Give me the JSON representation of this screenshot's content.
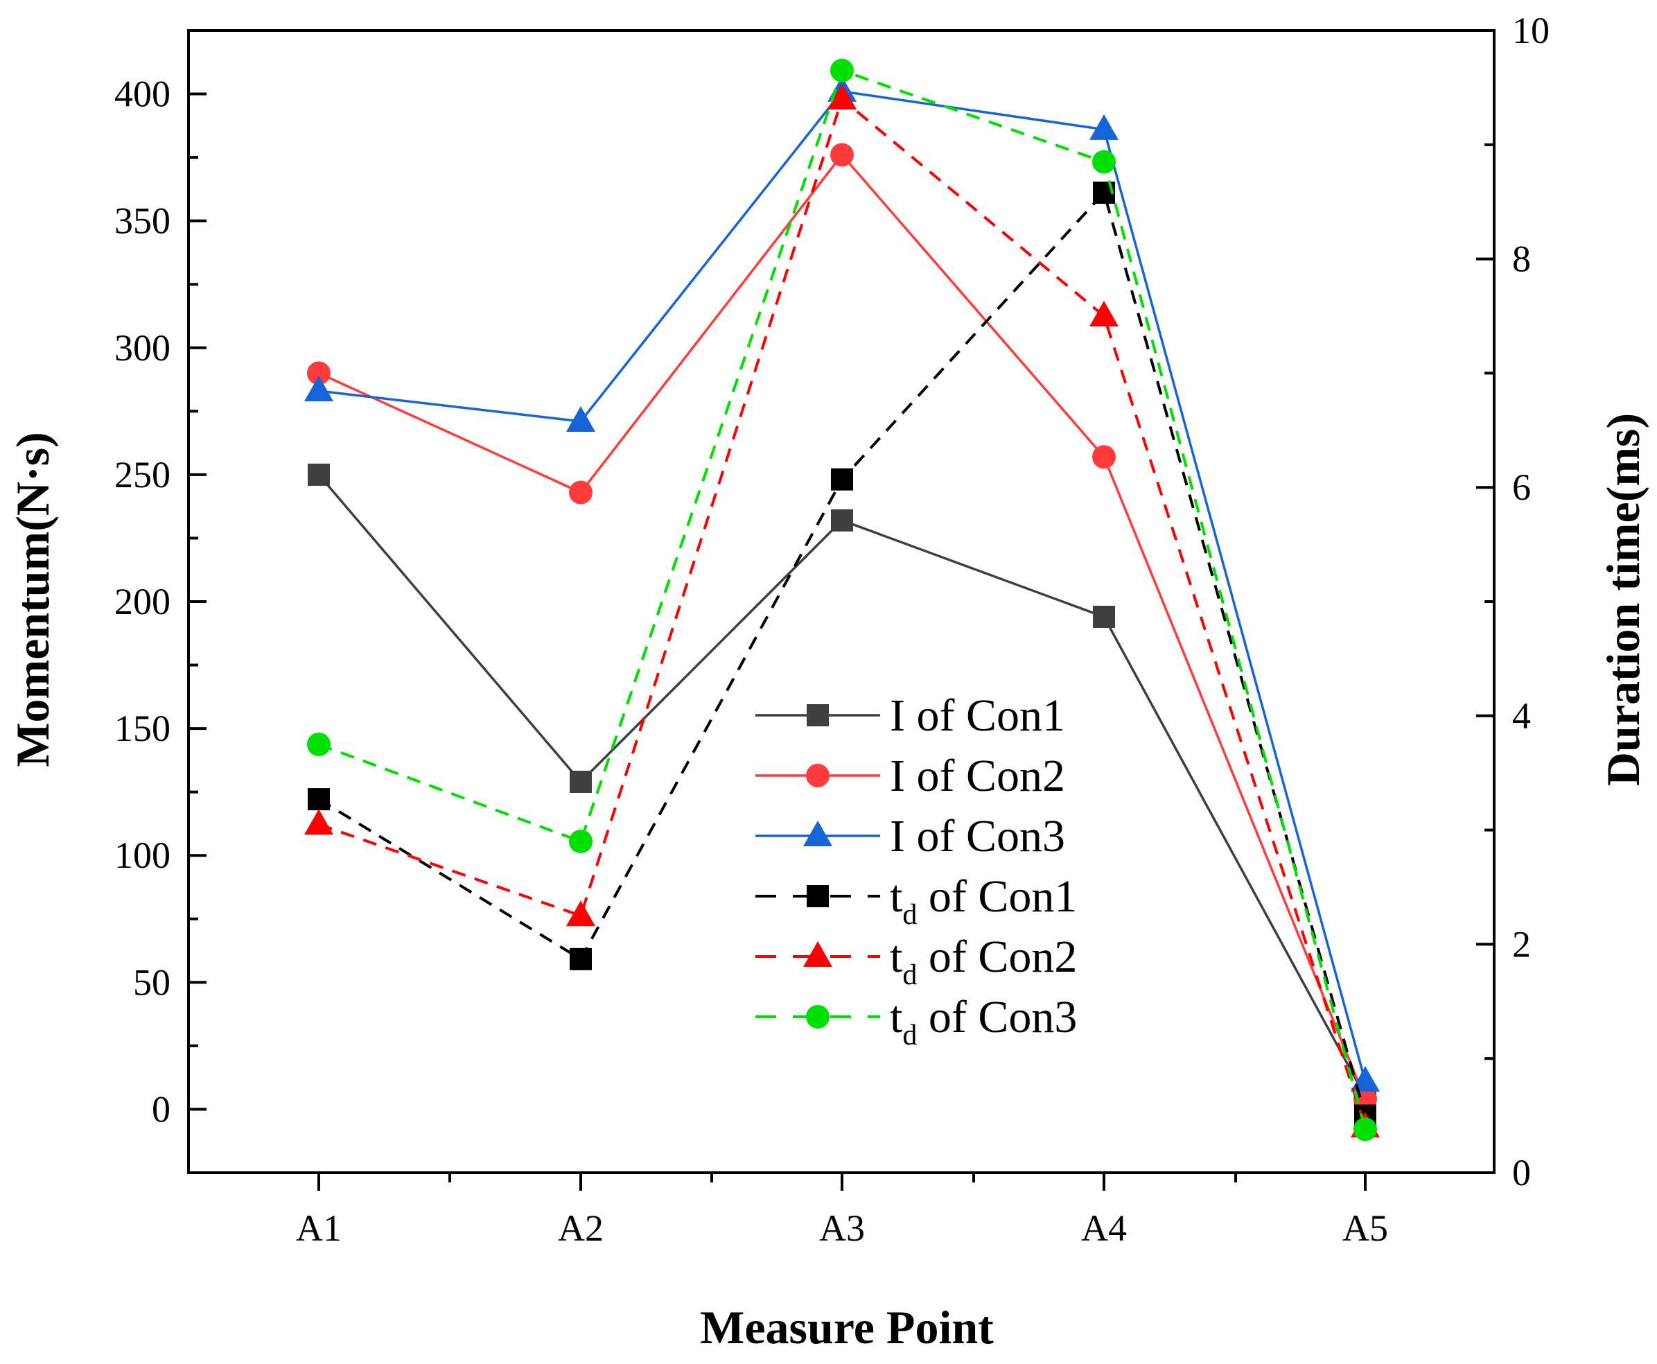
{
  "chart_data": {
    "type": "line",
    "categories": [
      "A1",
      "A2",
      "A3",
      "A4",
      "A5"
    ],
    "xlabel": "Measure Point",
    "ylabel_left": "Momentum(N·s)",
    "ylabel_right": "Duration time(ms)",
    "ylim_left": [
      -25,
      425
    ],
    "ylim_right": [
      0,
      10
    ],
    "yticks_left": [
      0,
      50,
      100,
      150,
      200,
      250,
      300,
      350,
      400
    ],
    "yticks_right": [
      0,
      2,
      4,
      6,
      8,
      10
    ],
    "series": [
      {
        "name": "I of Con1",
        "label_main": "I of Con1",
        "axis": "left",
        "style": "solid",
        "color": "#3f3f3f",
        "marker": "square",
        "values": [
          250,
          129,
          232,
          194,
          5
        ]
      },
      {
        "name": "I of Con2",
        "label_main": "I of Con2",
        "axis": "left",
        "style": "solid",
        "color": "#ff3b3b",
        "marker": "circle",
        "values": [
          290,
          243,
          376,
          257,
          4
        ]
      },
      {
        "name": "I of Con3",
        "label_main": "I of Con3",
        "axis": "left",
        "style": "solid",
        "color": "#1565d8",
        "marker": "triangle",
        "values": [
          283,
          271,
          401,
          386,
          11
        ]
      },
      {
        "name": "td of Con1",
        "label_main": "t",
        "label_sub": "d",
        "label_rest": " of Con1",
        "axis": "right",
        "style": "dashed",
        "color": "#000000",
        "marker": "square",
        "values": [
          3.27,
          1.87,
          6.07,
          8.58,
          0.5
        ]
      },
      {
        "name": "td of Con2",
        "label_main": "t",
        "label_sub": "d",
        "label_rest": " of Con2",
        "axis": "right",
        "style": "dashed",
        "color": "#ff0000",
        "marker": "triangle",
        "values": [
          3.05,
          2.25,
          9.4,
          7.5,
          0.4
        ]
      },
      {
        "name": "td of Con3",
        "label_main": "t",
        "label_sub": "d",
        "label_rest": " of Con3",
        "axis": "right",
        "style": "dashed",
        "color": "#00e000",
        "marker": "circle",
        "values": [
          3.75,
          2.9,
          9.65,
          8.85,
          0.38
        ]
      }
    ],
    "legend_position": "center-right"
  }
}
